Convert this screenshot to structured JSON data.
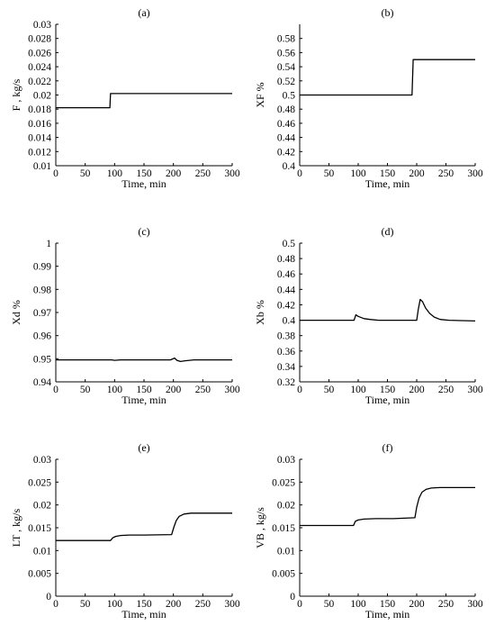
{
  "chart_data": [
    {
      "type": "line",
      "title": "(a)",
      "xlabel": "Time, min",
      "ylabel": "F , kg/s",
      "xlim": [
        0,
        300
      ],
      "ylim": [
        0.01,
        0.03
      ],
      "xticks": [
        "0",
        "50",
        "100",
        "150",
        "200",
        "250",
        "300"
      ],
      "yticks": [
        "0.01",
        "0.012",
        "0.014",
        "0.016",
        "0.018",
        "0.02",
        "0.022",
        "0.024",
        "0.026",
        "0.028",
        "0.03"
      ],
      "grid": false,
      "series": [
        {
          "x": [
            0,
            92,
            93,
            300
          ],
          "y": [
            0.0182,
            0.0182,
            0.0202,
            0.0202
          ]
        }
      ]
    },
    {
      "type": "line",
      "title": "(b)",
      "xlabel": "Time, min",
      "ylabel": "XF %",
      "xlim": [
        0,
        300
      ],
      "ylim": [
        0.4,
        0.6
      ],
      "xticks": [
        "0",
        "50",
        "100",
        "150",
        "200",
        "250",
        "300"
      ],
      "yticks": [
        "0.4",
        "0.42",
        "0.44",
        "0.46",
        "0.48",
        "0.5",
        "0.52",
        "0.54",
        "0.56",
        "0.58"
      ],
      "grid": false,
      "series": [
        {
          "x": [
            0,
            192,
            194,
            300
          ],
          "y": [
            0.5,
            0.5,
            0.55,
            0.55
          ]
        }
      ]
    },
    {
      "type": "line",
      "title": "(c)",
      "xlabel": "Time, min",
      "ylabel": "Xd %",
      "xlim": [
        0,
        300
      ],
      "ylim": [
        0.94,
        1.0
      ],
      "xticks": [
        "0",
        "50",
        "100",
        "150",
        "200",
        "250",
        "300"
      ],
      "yticks": [
        "0.94",
        "0.95",
        "0.96",
        "0.97",
        "0.98",
        "0.99",
        "1"
      ],
      "grid": false,
      "series": [
        {
          "x": [
            0,
            95,
            100,
            110,
            195,
            202,
            206,
            212,
            220,
            235,
            300
          ],
          "y": [
            0.9495,
            0.9495,
            0.9493,
            0.9495,
            0.9495,
            0.9503,
            0.9493,
            0.9488,
            0.9491,
            0.9495,
            0.9495
          ]
        }
      ]
    },
    {
      "type": "line",
      "title": "(d)",
      "xlabel": "Time, min",
      "ylabel": "Xb %",
      "xlim": [
        0,
        300
      ],
      "ylim": [
        0.32,
        0.5
      ],
      "xticks": [
        "0",
        "50",
        "100",
        "150",
        "200",
        "250",
        "300"
      ],
      "yticks": [
        "0.32",
        "0.34",
        "0.36",
        "0.38",
        "0.4",
        "0.42",
        "0.44",
        "0.46",
        "0.48",
        "0.5"
      ],
      "grid": false,
      "series": [
        {
          "x": [
            0,
            93,
            96,
            100,
            110,
            120,
            135,
            150,
            200,
            203,
            206,
            210,
            215,
            222,
            230,
            240,
            255,
            300
          ],
          "y": [
            0.4,
            0.4,
            0.407,
            0.405,
            0.402,
            0.401,
            0.4,
            0.4,
            0.4,
            0.415,
            0.427,
            0.424,
            0.416,
            0.409,
            0.404,
            0.401,
            0.4,
            0.399
          ]
        }
      ]
    },
    {
      "type": "line",
      "title": "(e)",
      "xlabel": "Time, min",
      "ylabel": "LT , kg/s",
      "xlim": [
        0,
        300
      ],
      "ylim": [
        0,
        0.03
      ],
      "xticks": [
        "0",
        "50",
        "100",
        "150",
        "200",
        "250",
        "300"
      ],
      "yticks": [
        "0",
        "0.005",
        "0.01",
        "0.015",
        "0.02",
        "0.025",
        "0.03"
      ],
      "grid": false,
      "series": [
        {
          "x": [
            0,
            93,
            97,
            102,
            110,
            125,
            150,
            197,
            201,
            205,
            210,
            218,
            230,
            250,
            300
          ],
          "y": [
            0.0122,
            0.0122,
            0.0128,
            0.0131,
            0.0133,
            0.0134,
            0.0134,
            0.0135,
            0.0152,
            0.0166,
            0.0175,
            0.018,
            0.0182,
            0.0182,
            0.0182
          ]
        }
      ]
    },
    {
      "type": "line",
      "title": "(f)",
      "xlabel": "Time, min",
      "ylabel": "VB , kg/s",
      "xlim": [
        0,
        300
      ],
      "ylim": [
        0,
        0.03
      ],
      "xticks": [
        "0",
        "50",
        "100",
        "150",
        "200",
        "250",
        "300"
      ],
      "yticks": [
        "0",
        "0.005",
        "0.01",
        "0.015",
        "0.02",
        "0.025",
        "0.03"
      ],
      "grid": false,
      "series": [
        {
          "x": [
            0,
            92,
            95,
            100,
            110,
            130,
            160,
            197,
            200,
            204,
            209,
            216,
            225,
            240,
            300
          ],
          "y": [
            0.0155,
            0.0155,
            0.0164,
            0.0167,
            0.0169,
            0.017,
            0.017,
            0.0172,
            0.0195,
            0.0215,
            0.0228,
            0.0234,
            0.0237,
            0.0238,
            0.0238
          ]
        }
      ]
    }
  ]
}
